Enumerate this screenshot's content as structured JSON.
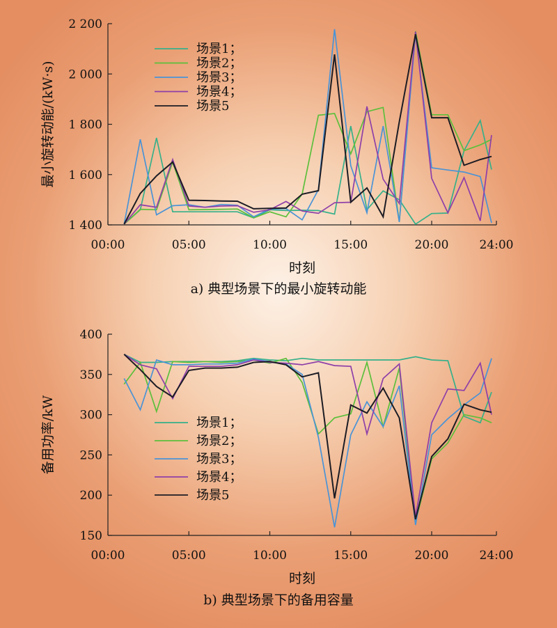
{
  "chart_data": [
    {
      "type": "line",
      "caption": "a) 典型场景下的最小旋转动能",
      "xlabel": "时刻",
      "ylabel": "最小旋转动能/(kW·s)",
      "x_ticks": [
        "00:00",
        "05:00",
        "10:00",
        "15:00",
        "20:00",
        "24:00"
      ],
      "x_tick_values": [
        0,
        5,
        10,
        15,
        20,
        24
      ],
      "y_ticks": [
        "1 400",
        "1 600",
        "1 800",
        "2 000",
        "2 200"
      ],
      "y_tick_values": [
        1400,
        1600,
        1800,
        2000,
        2200
      ],
      "xlim": [
        0,
        24
      ],
      "ylim": [
        1400,
        2200
      ],
      "grid": false,
      "legend_position": "top-left",
      "x": [
        1,
        2,
        3,
        4,
        5,
        6,
        7,
        8,
        9,
        10,
        11,
        12,
        13,
        14,
        15,
        16,
        17,
        18,
        19,
        20,
        21,
        22,
        23,
        23.7
      ],
      "series": [
        {
          "name": "场景1；",
          "color": "#35b08a",
          "values": [
            1403,
            1460,
            1746,
            1452,
            1452,
            1452,
            1452,
            1452,
            1428,
            1460,
            1457,
            1458,
            1457,
            1443,
            1793,
            1460,
            1535,
            1500,
            1403,
            1445,
            1447,
            1695,
            1815,
            1620
          ]
        },
        {
          "name": "场景2；",
          "color": "#5cbf3c",
          "values": [
            1403,
            1462,
            1460,
            1650,
            1460,
            1461,
            1462,
            1463,
            1428,
            1452,
            1432,
            1523,
            1836,
            1843,
            1682,
            1850,
            1867,
            1412,
            2170,
            1838,
            1838,
            1695,
            1718,
            1740
          ]
        },
        {
          "name": "场景3；",
          "color": "#4a93d6",
          "values": [
            1403,
            1740,
            1440,
            1476,
            1480,
            1470,
            1481,
            1478,
            1432,
            1463,
            1465,
            1420,
            1540,
            2178,
            1635,
            1448,
            1793,
            1412,
            2160,
            1627,
            1618,
            1610,
            1592,
            1408
          ]
        },
        {
          "name": "场景4；",
          "color": "#8e3fa8",
          "values": [
            1403,
            1480,
            1470,
            1660,
            1475,
            1470,
            1475,
            1476,
            1450,
            1460,
            1493,
            1455,
            1446,
            1488,
            1490,
            1871,
            1582,
            1485,
            2168,
            1585,
            1448,
            1588,
            1416,
            1757
          ]
        },
        {
          "name": "场景5",
          "color": "#1c1c24",
          "values": [
            1403,
            1525,
            1595,
            1650,
            1498,
            1497,
            1495,
            1494,
            1464,
            1466,
            1467,
            1522,
            1536,
            2078,
            1490,
            1547,
            1432,
            1810,
            2158,
            1826,
            1826,
            1637,
            1660,
            1672
          ]
        }
      ]
    },
    {
      "type": "line",
      "caption": "b) 典型场景下的备用容量",
      "xlabel": "时刻",
      "ylabel": "备用功率/kW",
      "x_ticks": [
        "00:00",
        "05:00",
        "10:00",
        "15:00",
        "20:00",
        "24:00"
      ],
      "x_tick_values": [
        0,
        5,
        10,
        15,
        20,
        24
      ],
      "y_ticks": [
        "150",
        "200",
        "250",
        "300",
        "350",
        "400"
      ],
      "y_tick_values": [
        150,
        200,
        250,
        300,
        350,
        400
      ],
      "xlim": [
        0,
        24
      ],
      "ylim": [
        150,
        400
      ],
      "grid": false,
      "legend_position": "center-left",
      "x": [
        1,
        2,
        3,
        4,
        5,
        6,
        7,
        8,
        9,
        10,
        11,
        12,
        13,
        14,
        15,
        16,
        17,
        18,
        19,
        20,
        21,
        22,
        23,
        23.7
      ],
      "series": [
        {
          "name": "场景1；",
          "color": "#35b08a",
          "values": [
            375,
            365,
            365,
            366,
            366,
            366,
            366,
            367,
            370,
            368,
            367,
            370,
            368,
            368,
            368,
            368,
            368,
            368,
            372,
            368,
            367,
            298,
            290,
            328
          ]
        },
        {
          "name": "场景2；",
          "color": "#5cbf3c",
          "values": [
            338,
            365,
            304,
            366,
            365,
            366,
            365,
            366,
            368,
            364,
            370,
            340,
            276,
            296,
            301,
            365,
            285,
            358,
            167,
            245,
            265,
            300,
            296,
            290
          ]
        },
        {
          "name": "场景3；",
          "color": "#4a93d6",
          "values": [
            345,
            306,
            368,
            362,
            362,
            363,
            363,
            364,
            369,
            366,
            363,
            350,
            272,
            160,
            275,
            316,
            285,
            336,
            163,
            275,
            295,
            312,
            327,
            370
          ]
        },
        {
          "name": "场景4；",
          "color": "#8e3fa8",
          "values": [
            375,
            362,
            357,
            320,
            360,
            360,
            360,
            362,
            368,
            365,
            364,
            362,
            366,
            361,
            360,
            276,
            345,
            363,
            173,
            290,
            332,
            330,
            364,
            300
          ]
        },
        {
          "name": "场景5",
          "color": "#1c1c24",
          "values": [
            375,
            356,
            335,
            322,
            355,
            358,
            358,
            359,
            365,
            366,
            362,
            347,
            352,
            196,
            312,
            302,
            333,
            296,
            170,
            248,
            270,
            313,
            306,
            303
          ]
        }
      ]
    }
  ]
}
